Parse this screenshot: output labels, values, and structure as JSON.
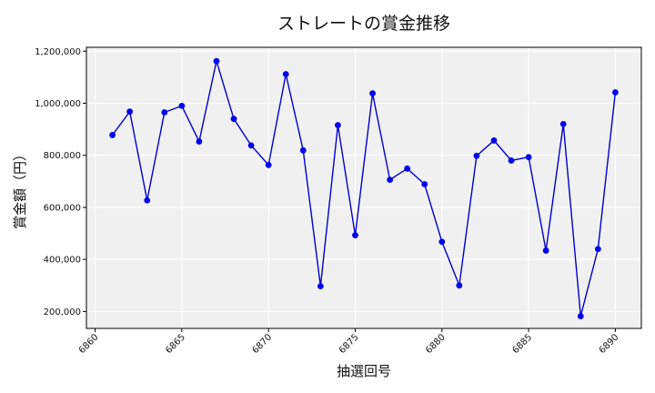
{
  "chart_data": {
    "type": "line",
    "title": "ストレートの賞金推移",
    "xlabel": "抽選回号",
    "ylabel": "賞金額（円）",
    "xlim": [
      6859.5,
      6891.5
    ],
    "ylim": [
      135000,
      1215000
    ],
    "xticks": [
      6860,
      6865,
      6870,
      6875,
      6880,
      6885,
      6890
    ],
    "yticks": [
      200000,
      400000,
      600000,
      800000,
      1000000,
      1200000
    ],
    "ytick_labels": [
      "200,000",
      "400,000",
      "600,000",
      "800,000",
      "1,000,000",
      "1,200,000"
    ],
    "grid": true,
    "line_color": "#0000cc",
    "marker_color": "#0000ee",
    "plot_background": "#f0f0f0",
    "series": [
      {
        "x": [
          6861,
          6862,
          6863,
          6864,
          6865,
          6866,
          6867,
          6868,
          6869,
          6870,
          6871,
          6872,
          6873,
          6874,
          6875,
          6876,
          6877,
          6878,
          6879,
          6880,
          6881,
          6882,
          6883,
          6884,
          6885,
          6886,
          6887,
          6888,
          6889,
          6890
        ],
        "values": [
          878000,
          968000,
          627000,
          965000,
          990000,
          853000,
          1162000,
          940000,
          838000,
          763000,
          1112000,
          819000,
          297000,
          916000,
          493000,
          1038000,
          706000,
          749000,
          689000,
          468000,
          300000,
          798000,
          857000,
          780000,
          793000,
          434000,
          920000,
          182000,
          440000,
          1042000
        ]
      }
    ]
  }
}
